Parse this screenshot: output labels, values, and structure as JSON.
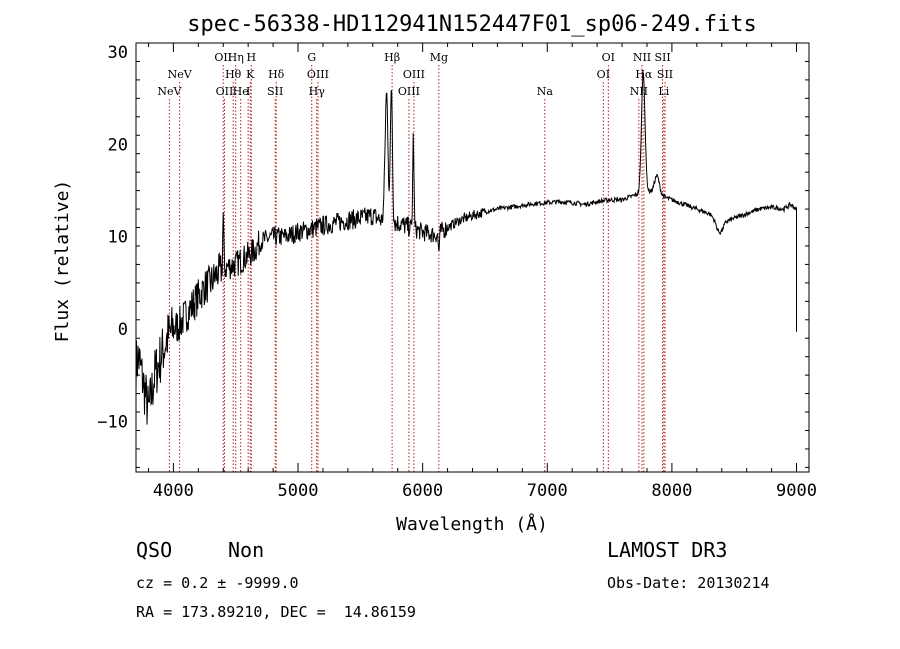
{
  "chart_data": {
    "type": "line",
    "title": "spec-56338-HD112941N152447F01_sp06-249.fits",
    "xlabel": "Wavelength (Å)",
    "ylabel": "Flux (relative)",
    "xlim": [
      3700,
      9100
    ],
    "ylim": [
      -15.5,
      31
    ],
    "xticks": [
      4000,
      5000,
      6000,
      7000,
      8000,
      9000
    ],
    "yticks": [
      -10,
      0,
      10,
      20,
      30
    ],
    "grid": false,
    "line_color": "#000000",
    "emission_line_color": "#b22222",
    "spectrum_anchors": [
      [
        3700,
        -4
      ],
      [
        3720,
        -3
      ],
      [
        3760,
        -6
      ],
      [
        3800,
        -9
      ],
      [
        3850,
        -5
      ],
      [
        3900,
        -3
      ],
      [
        3950,
        -1
      ],
      [
        4000,
        0
      ],
      [
        4050,
        0.5
      ],
      [
        4100,
        1.5
      ],
      [
        4150,
        2.5
      ],
      [
        4200,
        3.5
      ],
      [
        4250,
        4.5
      ],
      [
        4300,
        5
      ],
      [
        4350,
        6
      ],
      [
        4400,
        6.5
      ],
      [
        4450,
        6.8
      ],
      [
        4500,
        7
      ],
      [
        4550,
        7.5
      ],
      [
        4600,
        8
      ],
      [
        4650,
        8.5
      ],
      [
        4700,
        9.5
      ],
      [
        4800,
        10
      ],
      [
        4900,
        10
      ],
      [
        5000,
        10.5
      ],
      [
        5100,
        10.8
      ],
      [
        5200,
        11.2
      ],
      [
        5300,
        11.5
      ],
      [
        5400,
        11.8
      ],
      [
        5500,
        12
      ],
      [
        5600,
        12.3
      ],
      [
        5700,
        11.5
      ],
      [
        5800,
        11.5
      ],
      [
        5900,
        11
      ],
      [
        6000,
        10.5
      ],
      [
        6100,
        10.2
      ],
      [
        6200,
        11
      ],
      [
        6300,
        11.8
      ],
      [
        6400,
        12.3
      ],
      [
        6500,
        12.7
      ],
      [
        6600,
        13
      ],
      [
        6700,
        13.2
      ],
      [
        6800,
        13.4
      ],
      [
        6900,
        13.6
      ],
      [
        7000,
        13.7
      ],
      [
        7100,
        13.8
      ],
      [
        7200,
        13.7
      ],
      [
        7300,
        13.5
      ],
      [
        7400,
        13.8
      ],
      [
        7500,
        14
      ],
      [
        7600,
        14
      ],
      [
        7700,
        14.5
      ],
      [
        7800,
        15
      ],
      [
        7900,
        14.5
      ],
      [
        8000,
        14
      ],
      [
        8100,
        13.5
      ],
      [
        8200,
        13
      ],
      [
        8300,
        12.5
      ],
      [
        8400,
        11.5
      ],
      [
        8500,
        12
      ],
      [
        8600,
        12.5
      ],
      [
        8700,
        13
      ],
      [
        8800,
        13.2
      ],
      [
        8900,
        13
      ],
      [
        8950,
        13.5
      ],
      [
        9000,
        13
      ]
    ],
    "emission_peaks": [
      {
        "center": 4400,
        "amp": 6,
        "sigma": 4
      },
      {
        "center": 5710,
        "amp": 14,
        "sigma": 12
      },
      {
        "center": 5750,
        "amp": 15,
        "sigma": 8
      },
      {
        "center": 5925,
        "amp": 10,
        "sigma": 5
      },
      {
        "center": 7770,
        "amp": 13,
        "sigma": 14
      },
      {
        "center": 7880,
        "amp": 2,
        "sigma": 20
      }
    ],
    "absorption_dips": [
      {
        "center": 6130,
        "depth": 2,
        "sigma": 5
      },
      {
        "center": 8380,
        "depth": 1.2,
        "sigma": 25
      }
    ],
    "emission_lines": [
      {
        "label": "NeV",
        "wavelength": 3968,
        "row": 3
      },
      {
        "label": "NeV",
        "wavelength": 4050,
        "row": 2
      },
      {
        "label": "OII",
        "wavelength": 4400,
        "row": 1
      },
      {
        "label": "OII",
        "wavelength": 4410,
        "row": 3
      },
      {
        "label": "Hη",
        "wavelength": 4500,
        "row": 1
      },
      {
        "label": "Hθ",
        "wavelength": 4480,
        "row": 2
      },
      {
        "label": "He",
        "wavelength": 4540,
        "row": 3
      },
      {
        "label": "H",
        "wavelength": 4625,
        "row": 1
      },
      {
        "label": "K",
        "wavelength": 4617,
        "row": 2
      },
      {
        "label": "I",
        "wavelength": 4600,
        "row": 3
      },
      {
        "label": "Hδ",
        "wavelength": 4825,
        "row": 2
      },
      {
        "label": "SII",
        "wavelength": 4817,
        "row": 3
      },
      {
        "label": "G",
        "wavelength": 5110,
        "row": 1
      },
      {
        "label": "OIII",
        "wavelength": 5160,
        "row": 2
      },
      {
        "label": "Hγ",
        "wavelength": 5150,
        "row": 3
      },
      {
        "label": "Hβ",
        "wavelength": 5755,
        "row": 1
      },
      {
        "label": "OIII",
        "wavelength": 5930,
        "row": 2
      },
      {
        "label": "OIII",
        "wavelength": 5890,
        "row": 3
      },
      {
        "label": "Mg",
        "wavelength": 6130,
        "row": 1
      },
      {
        "label": "Na",
        "wavelength": 6980,
        "row": 3
      },
      {
        "label": "OI",
        "wavelength": 7490,
        "row": 1
      },
      {
        "label": "OI",
        "wavelength": 7450,
        "row": 2
      },
      {
        "label": "NII",
        "wavelength": 7760,
        "row": 1
      },
      {
        "label": "Hα",
        "wavelength": 7775,
        "row": 2
      },
      {
        "label": "NII",
        "wavelength": 7735,
        "row": 3
      },
      {
        "label": "SII",
        "wavelength": 7925,
        "row": 1
      },
      {
        "label": "SII",
        "wavelength": 7945,
        "row": 2
      },
      {
        "label": "Li",
        "wavelength": 7935,
        "row": 3
      }
    ]
  },
  "footer": {
    "class_label": "QSO",
    "subclass_label": "Non",
    "survey": "LAMOST DR3",
    "redshift_text": "cz = 0.2 ± -9999.0",
    "obs_date_text": "Obs-Date: 20130214",
    "coords_text": "RA = 173.89210, DEC =  14.86159"
  }
}
